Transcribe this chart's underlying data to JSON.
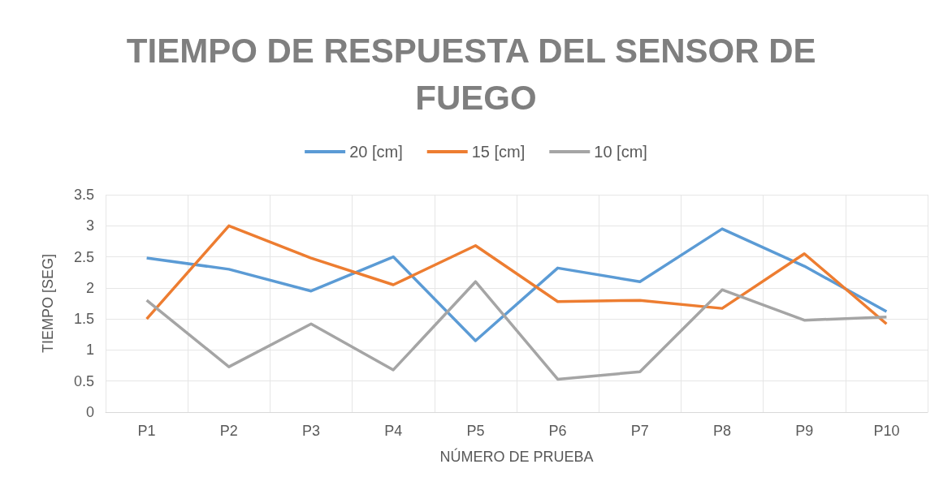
{
  "chart_data": {
    "type": "line",
    "title": "TIEMPO DE RESPUESTA DEL SENSOR DE FUEGO",
    "xlabel": "NÚMERO DE PRUEBA",
    "ylabel": "TIEMPO [SEG]",
    "categories": [
      "P1",
      "P2",
      "P3",
      "P4",
      "P5",
      "P6",
      "P7",
      "P8",
      "P9",
      "P10"
    ],
    "series": [
      {
        "name": "20 [cm]",
        "color": "#5b9bd5",
        "values": [
          2.48,
          2.3,
          1.95,
          2.5,
          1.15,
          2.32,
          2.1,
          2.95,
          2.35,
          1.62
        ]
      },
      {
        "name": "15 [cm]",
        "color": "#ed7d31",
        "values": [
          1.5,
          3.0,
          2.48,
          2.05,
          2.68,
          1.78,
          1.8,
          1.67,
          2.55,
          1.42
        ]
      },
      {
        "name": "10 [cm]",
        "color": "#a5a5a5",
        "values": [
          1.8,
          0.73,
          1.42,
          0.68,
          2.1,
          0.53,
          0.65,
          1.97,
          1.48,
          1.53
        ]
      }
    ],
    "ylim": [
      0,
      3.5
    ],
    "yticks": [
      0,
      0.5,
      1,
      1.5,
      2,
      2.5,
      3,
      3.5
    ],
    "grid": true,
    "legend": "top",
    "marker": "none",
    "line_style": "solid"
  }
}
